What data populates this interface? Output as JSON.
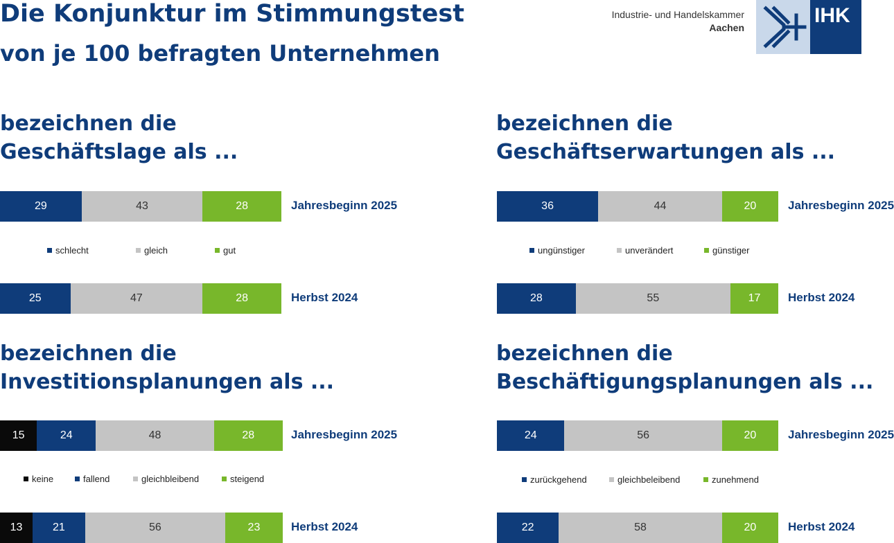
{
  "header": {
    "title": "Die Konjunktur im Stimmungstest",
    "subtitle": "von je 100 befragten Unternehmen",
    "org_line1": "Industrie- und Handelskammer",
    "org_line2": "Aachen",
    "logo_text": "IHK"
  },
  "colors": {
    "navy": "#0f3c7a",
    "gray": "#c4c4c4",
    "green": "#78b72b",
    "black": "#0a0a0a"
  },
  "chart_data": [
    {
      "type": "bar",
      "stacked": true,
      "orientation": "horizontal",
      "title_line1": "bezeichnen die",
      "title_line2": "Geschäftslage als ...",
      "categories": [
        "Jahresbeginn 2025",
        "Herbst 2024"
      ],
      "series": [
        {
          "name": "schlecht",
          "color": "#0f3c7a",
          "values": [
            29,
            25
          ]
        },
        {
          "name": "gleich",
          "color": "#c4c4c4",
          "values": [
            43,
            47
          ]
        },
        {
          "name": "gut",
          "color": "#78b72b",
          "values": [
            28,
            28
          ]
        }
      ]
    },
    {
      "type": "bar",
      "stacked": true,
      "orientation": "horizontal",
      "title_line1": "bezeichnen die",
      "title_line2": "Geschäftserwartungen als ...",
      "categories": [
        "Jahresbeginn 2025",
        "Herbst 2024"
      ],
      "series": [
        {
          "name": "ungünstiger",
          "color": "#0f3c7a",
          "values": [
            36,
            28
          ]
        },
        {
          "name": "unverändert",
          "color": "#c4c4c4",
          "values": [
            44,
            55
          ]
        },
        {
          "name": "günstiger",
          "color": "#78b72b",
          "values": [
            20,
            17
          ]
        }
      ]
    },
    {
      "type": "bar",
      "stacked": true,
      "orientation": "horizontal",
      "title_line1": "bezeichnen die",
      "title_line2": "Investitionsplanungen als ...",
      "categories": [
        "Jahresbeginn 2025",
        "Herbst 2024"
      ],
      "series": [
        {
          "name": "keine",
          "color": "#0a0a0a",
          "values": [
            15,
            13
          ]
        },
        {
          "name": "fallend",
          "color": "#0f3c7a",
          "values": [
            24,
            21
          ]
        },
        {
          "name": "gleichbleibend",
          "color": "#c4c4c4",
          "values": [
            48,
            56
          ]
        },
        {
          "name": "steigend",
          "color": "#78b72b",
          "values": [
            28,
            23
          ]
        }
      ]
    },
    {
      "type": "bar",
      "stacked": true,
      "orientation": "horizontal",
      "title_line1": "bezeichnen die",
      "title_line2": "Beschäftigungsplanungen als ...",
      "categories": [
        "Jahresbeginn 2025",
        "Herbst 2024"
      ],
      "series": [
        {
          "name": "zurückgehend",
          "color": "#0f3c7a",
          "values": [
            24,
            22
          ]
        },
        {
          "name": "gleichbeleibend",
          "color": "#c4c4c4",
          "values": [
            56,
            58
          ]
        },
        {
          "name": "zunehmend",
          "color": "#78b72b",
          "values": [
            20,
            20
          ]
        }
      ]
    }
  ]
}
